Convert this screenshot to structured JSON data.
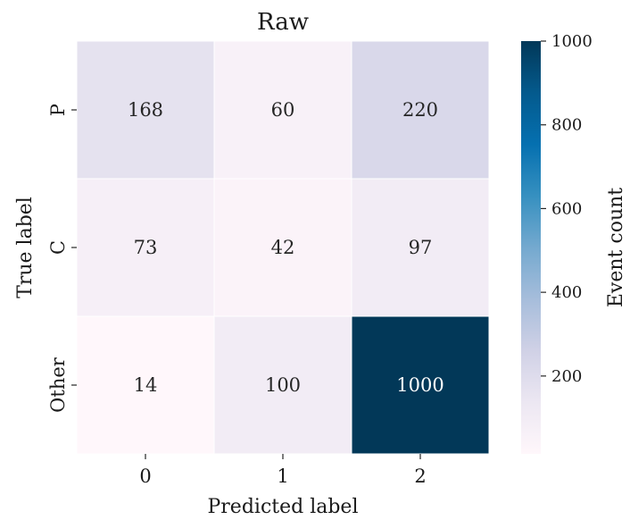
{
  "chart_data": {
    "type": "heatmap",
    "title": "Raw",
    "xlabel": "Predicted label",
    "ylabel": "True label",
    "x_categories": [
      "0",
      "1",
      "2"
    ],
    "y_categories": [
      "P",
      "C",
      "Other"
    ],
    "values": [
      [
        168,
        60,
        220
      ],
      [
        73,
        42,
        97
      ],
      [
        14,
        100,
        1000
      ]
    ],
    "colorbar": {
      "label": "Event count",
      "range": [
        14,
        1000
      ],
      "ticks": [
        200,
        400,
        600,
        800,
        1000
      ],
      "tick_labels": [
        "200",
        "400",
        "600",
        "800",
        "1000"
      ]
    },
    "colormap": "PuBu",
    "colors": {
      "low": "#fff7fb",
      "high": "#023858",
      "text_dark": "#262626",
      "text_light": "#ffffff"
    }
  }
}
